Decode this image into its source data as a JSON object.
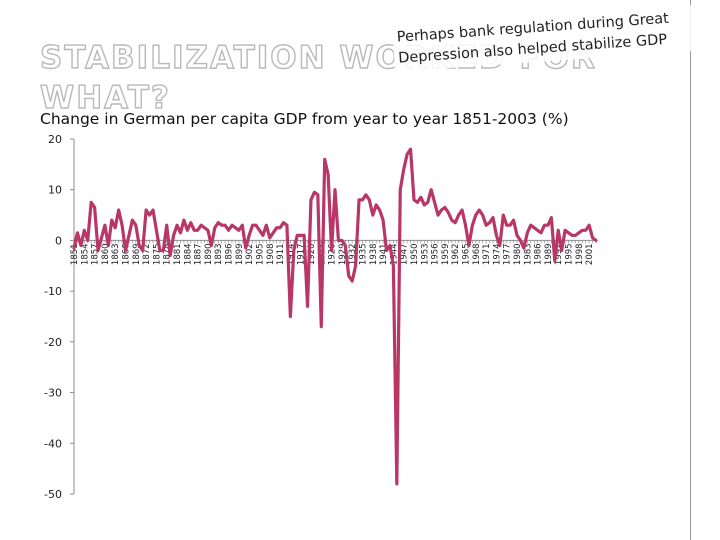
{
  "slide": {
    "title": "STABILIZATION WORKED FOR WHAT?",
    "callout_line1": "Perhaps bank regulation during Great",
    "callout_line2": "Depression also helped stabilize GDP",
    "chart_heading": "Change in German per capita GDP from year to year 1851-2003 (%)"
  },
  "chart_data": {
    "type": "line",
    "title": "Change in German per capita GDP from year to year 1851-2003 (%)",
    "xlabel": "",
    "ylabel": "",
    "ylim": [
      -50,
      20
    ],
    "yticks": [
      20,
      10,
      0,
      -10,
      -20,
      -30,
      -40,
      -50
    ],
    "xticks": [
      1851,
      1854,
      1857,
      1860,
      1863,
      1866,
      1869,
      1872,
      1875,
      1878,
      1881,
      1884,
      1887,
      1890,
      1893,
      1896,
      1899,
      1902,
      1905,
      1908,
      1911,
      1914,
      1917,
      1920,
      1923,
      1926,
      1929,
      1932,
      1935,
      1938,
      1941,
      1944,
      1947,
      1950,
      1953,
      1956,
      1959,
      1962,
      1965,
      1968,
      1971,
      1974,
      1977,
      1980,
      1983,
      1986,
      1989,
      1992,
      1995,
      1998,
      2001
    ],
    "line_color": "#b83766",
    "grid": false,
    "series": [
      {
        "x": [
          1851,
          1852,
          1853,
          1854,
          1855,
          1856,
          1857,
          1858,
          1859,
          1860,
          1861,
          1862,
          1863,
          1864,
          1865,
          1866,
          1867,
          1868,
          1869,
          1870,
          1871,
          1872,
          1873,
          1874,
          1875,
          1876,
          1877,
          1878,
          1879,
          1880,
          1881,
          1882,
          1883,
          1884,
          1885,
          1886,
          1887,
          1888,
          1889,
          1890,
          1891,
          1892,
          1893,
          1894,
          1895,
          1896,
          1897,
          1898,
          1899,
          1900,
          1901,
          1902,
          1903,
          1904,
          1905,
          1906,
          1907,
          1908,
          1909,
          1910,
          1911,
          1912,
          1913,
          1914,
          1915,
          1916,
          1917,
          1918,
          1919,
          1920,
          1921,
          1922,
          1923,
          1924,
          1925,
          1926,
          1927,
          1928,
          1929,
          1930,
          1931,
          1932,
          1933,
          1934,
          1935,
          1936,
          1937,
          1938,
          1939,
          1940,
          1941,
          1942,
          1943,
          1944,
          1945,
          1946,
          1947,
          1948,
          1949,
          1950,
          1951,
          1952,
          1953,
          1954,
          1955,
          1956,
          1957,
          1958,
          1959,
          1960,
          1961,
          1962,
          1963,
          1964,
          1965,
          1966,
          1967,
          1968,
          1969,
          1970,
          1971,
          1972,
          1973,
          1974,
          1975,
          1976,
          1977,
          1978,
          1979,
          1980,
          1981,
          1982,
          1983,
          1984,
          1985,
          1986,
          1987,
          1988,
          1989,
          1990,
          1991,
          1992,
          1993,
          1994,
          1995,
          1996,
          1997,
          1998,
          1999,
          2000,
          2001,
          2002,
          2003
        ],
        "values": [
          -1.5,
          1.5,
          -1.0,
          2.0,
          0.0,
          7.5,
          6.5,
          -2.0,
          0.5,
          3.0,
          -1.0,
          4.0,
          2.5,
          6.0,
          3.0,
          -2.0,
          1.0,
          4.0,
          3.0,
          -1.0,
          -2.0,
          6.0,
          5.0,
          6.0,
          2.0,
          -2.0,
          -2.0,
          3.0,
          -3.0,
          1.0,
          3.0,
          1.5,
          4.0,
          2.0,
          3.5,
          2.0,
          2.0,
          3.0,
          2.5,
          2.0,
          -1.0,
          2.5,
          3.5,
          3.0,
          3.0,
          2.0,
          3.0,
          2.5,
          2.0,
          3.0,
          -1.5,
          1.0,
          3.0,
          3.0,
          2.0,
          1.0,
          3.0,
          0.5,
          1.5,
          2.5,
          2.5,
          3.5,
          3.0,
          -15.0,
          -2.0,
          1.0,
          1.0,
          1.0,
          -13.0,
          8.0,
          9.5,
          9.0,
          -17.0,
          16.0,
          13.0,
          -2.0,
          10.0,
          0.0,
          0.0,
          -1.0,
          -7.0,
          -8.0,
          -5.0,
          8.0,
          8.0,
          9.0,
          8.0,
          5.0,
          7.0,
          6.0,
          4.0,
          -2.0,
          -1.0,
          -5.0,
          -48.0,
          10.0,
          14.0,
          17.0,
          18.0,
          8.0,
          7.5,
          8.5,
          7.0,
          7.5,
          10.0,
          7.5,
          5.0,
          6.0,
          6.5,
          5.5,
          4.0,
          3.5,
          5.0,
          6.0,
          3.0,
          -1.0,
          3.0,
          5.0,
          6.0,
          5.0,
          3.0,
          3.5,
          4.5,
          1.0,
          -1.0,
          5.0,
          3.0,
          3.0,
          4.0,
          1.0,
          0.0,
          -1.5,
          1.5,
          3.0,
          2.5,
          2.0,
          1.5,
          3.0,
          3.0,
          4.5,
          -4.0,
          2.0,
          -2.0,
          2.0,
          1.5,
          1.0,
          1.0,
          1.5,
          2.0,
          2.0,
          3.0,
          0.5,
          0.0
        ]
      }
    ]
  }
}
